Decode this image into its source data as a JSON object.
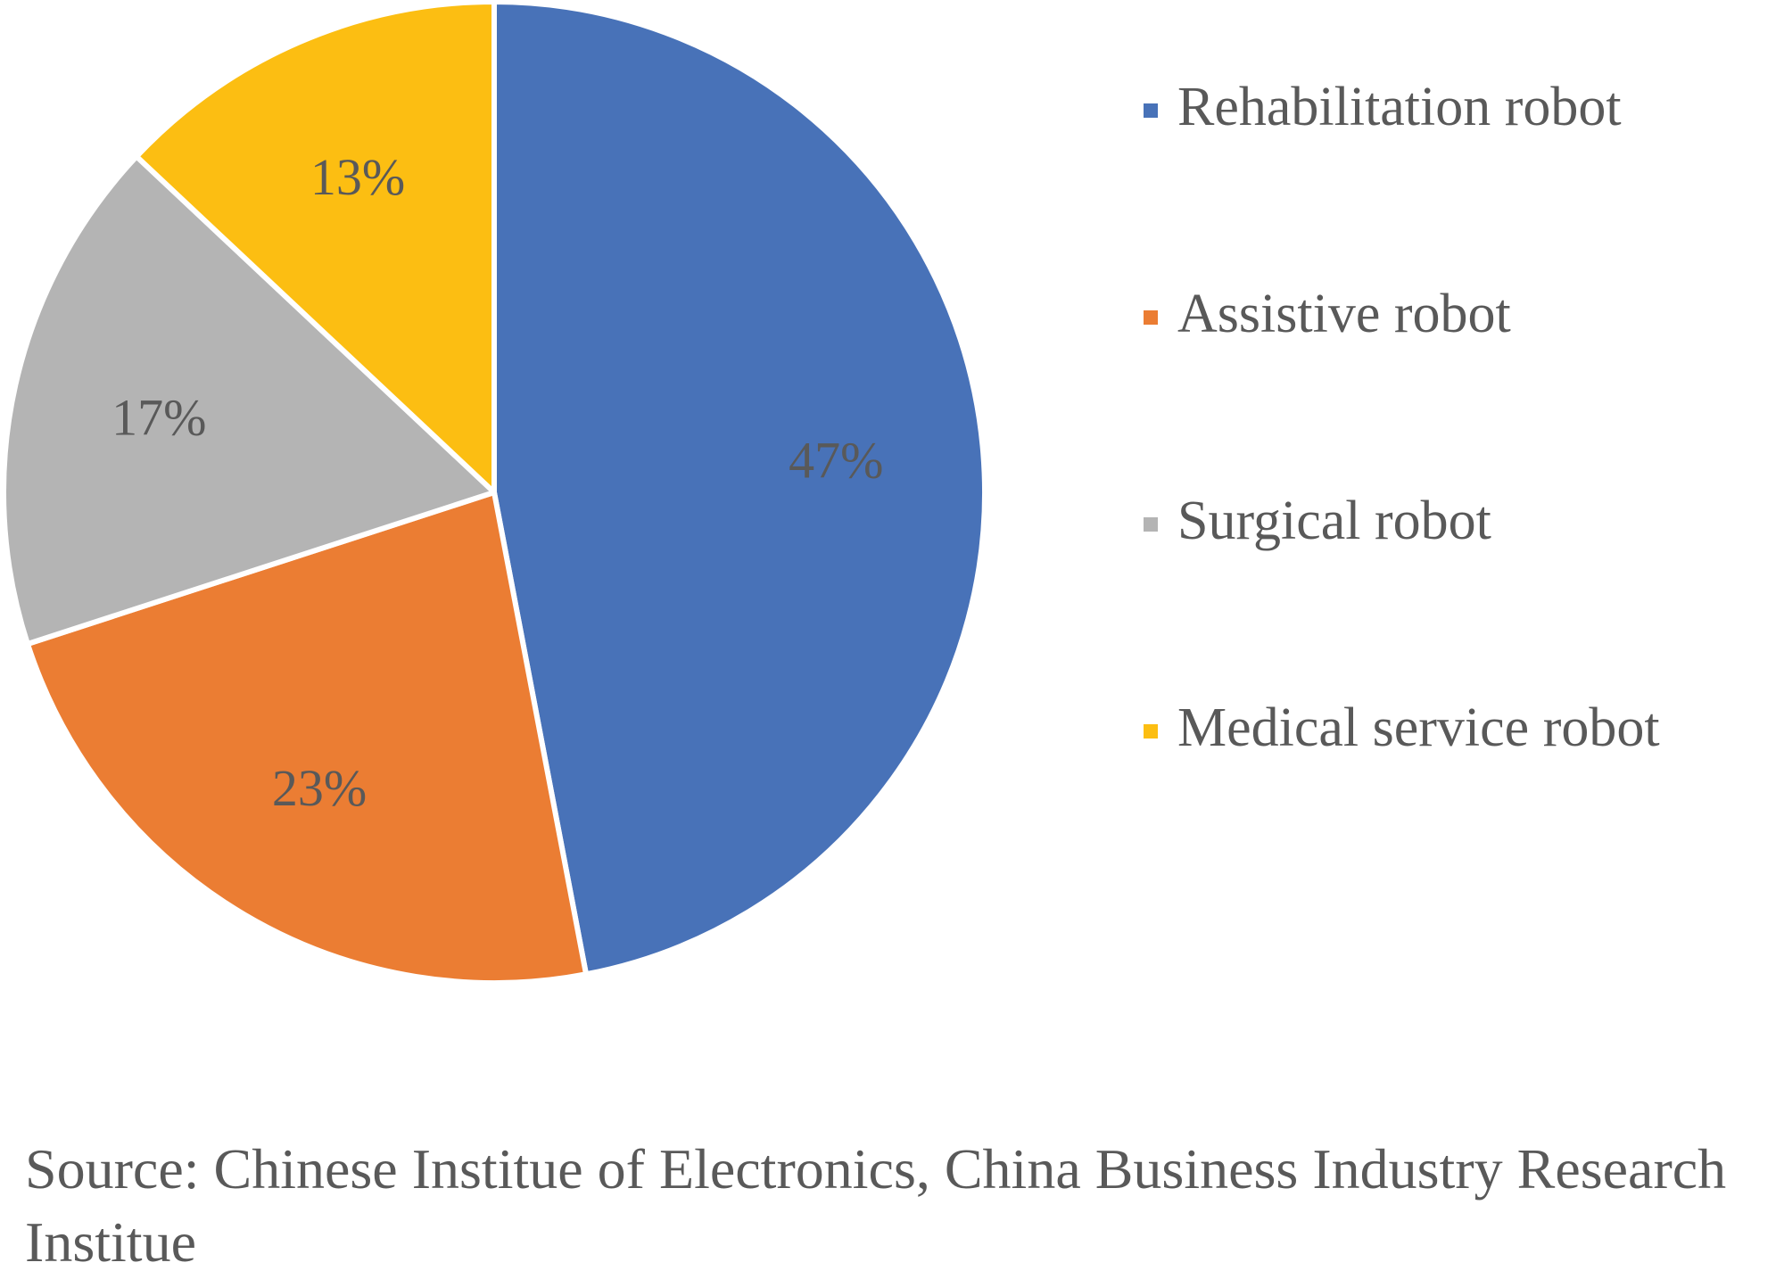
{
  "chart_data": {
    "type": "pie",
    "categories": [
      "Rehabilitation robot",
      "Assistive robot",
      "Surgical robot",
      "Medical service robot"
    ],
    "values": [
      47,
      23,
      17,
      13
    ],
    "data_labels": [
      "47%",
      "23%",
      "17%",
      "13%"
    ],
    "colors": [
      "#4872B8",
      "#EB7D33",
      "#B4B4B4",
      "#FCBE12"
    ],
    "legend_position": "right",
    "title": ""
  },
  "source": "Source: Chinese Institue of Electronics, China Business Industry Research Institue"
}
